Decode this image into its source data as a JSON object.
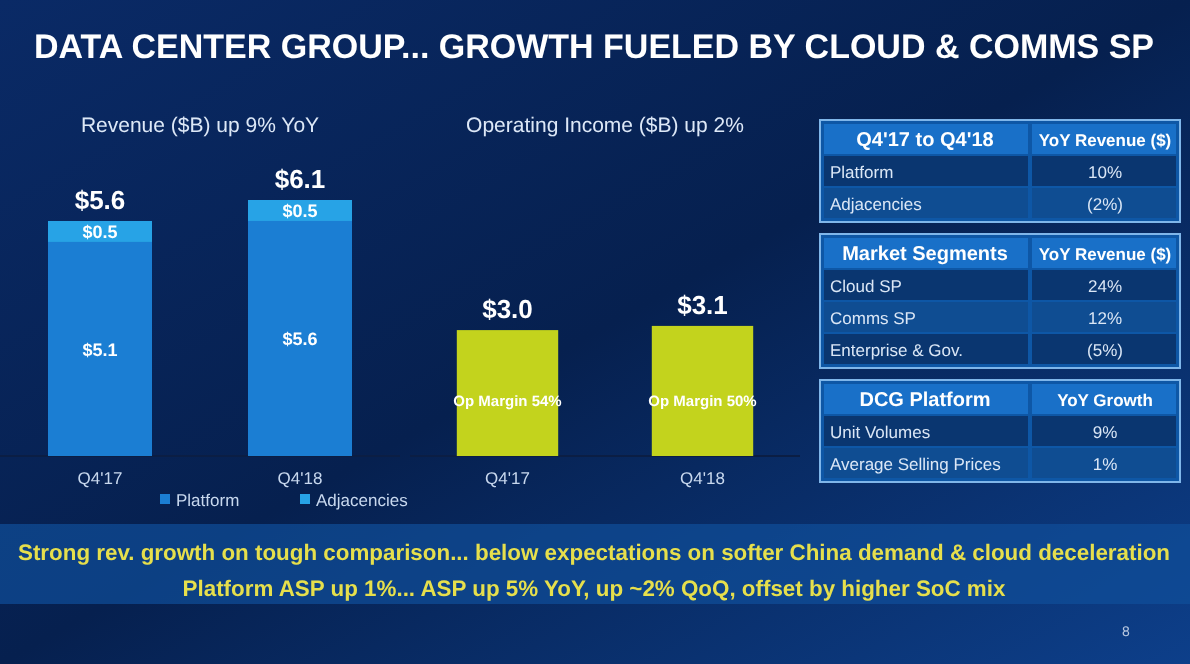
{
  "chart_data": [
    {
      "type": "other",
      "title": "DATA CENTER GROUP... GROWTH FUELED BY CLOUD & COMMS SP",
      "annotations": [
        "Strong rev. growth on tough comparison... below expectations on softer China demand & cloud deceleration",
        "Platform ASP up 1%... ASP up 5% YoY,  up ~2% QoQ, offset by higher SoC mix",
        "8"
      ]
    },
    {
      "type": "bar",
      "title": "Revenue ($B) up 9% YoY",
      "categories": [
        "Q4'17",
        "Q4'18"
      ],
      "stacked": true,
      "legend": "bottom",
      "totals": [
        "$5.6",
        "$6.1"
      ],
      "series": [
        {
          "name": "Platform",
          "color": "#1b7ed3",
          "values": [
            5.1,
            5.6
          ],
          "value_labels": [
            "$5.1",
            "$5.6"
          ]
        },
        {
          "name": "Adjacencies",
          "color": "#27a3e6",
          "values": [
            0.5,
            0.5
          ],
          "value_labels": [
            "$0.5",
            "$0.5"
          ]
        }
      ]
    },
    {
      "type": "bar",
      "title": "Operating Income ($B) up 2%",
      "categories": [
        "Q4'17",
        "Q4'18"
      ],
      "color": "#c3d31d",
      "values": [
        3.0,
        3.1
      ],
      "value_labels": [
        "$3.0",
        "$3.1"
      ],
      "annotations": [
        "Op Margin 54%",
        "Op Margin 50%"
      ]
    },
    {
      "type": "other",
      "title": "Q4'17 to Q4'18",
      "subtitle": "YoY Revenue ($)",
      "annotations": [
        "Platform",
        "10%",
        "Adjacencies",
        "(2%)"
      ]
    },
    {
      "type": "other",
      "title": "Market Segments",
      "subtitle": "YoY Revenue ($)",
      "annotations": [
        "Cloud SP",
        "24%",
        "Comms SP",
        "12%",
        "Enterprise & Gov.",
        "(5%)"
      ]
    },
    {
      "type": "other",
      "title": "DCG Platform",
      "subtitle": "YoY Growth",
      "annotations": [
        "Unit Volumes",
        "9%",
        "Average Selling Prices",
        "1%"
      ]
    }
  ]
}
